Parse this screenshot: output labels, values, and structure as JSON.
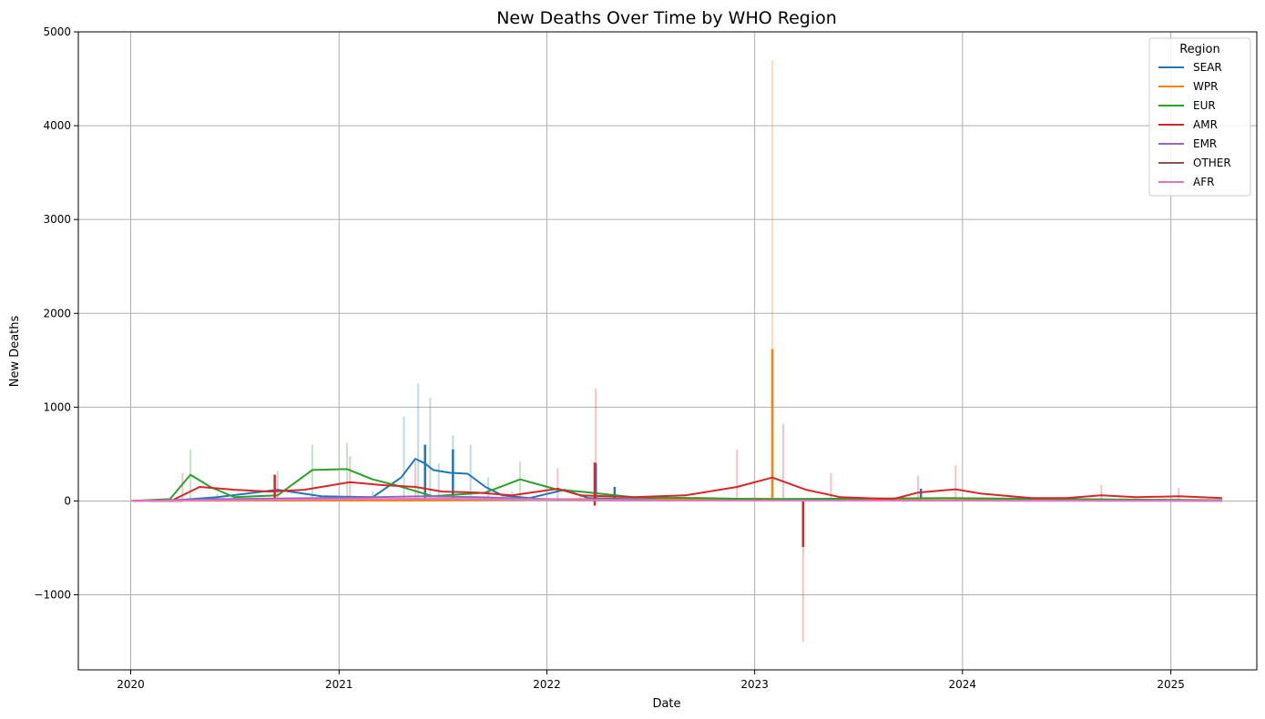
{
  "chart_data": {
    "type": "line",
    "title": "New Deaths Over Time by WHO Region",
    "xlabel": "Date",
    "ylabel": "New Deaths",
    "xlim": [
      "2019-10-01",
      "2025-06-01"
    ],
    "ylim": [
      -1800,
      5000
    ],
    "x_ticks": [
      "2020",
      "2021",
      "2022",
      "2023",
      "2024",
      "2025"
    ],
    "y_ticks": [
      -1000,
      0,
      1000,
      2000,
      3000,
      4000,
      5000
    ],
    "y_tick_labels": [
      "−1000",
      "0",
      "1000",
      "2000",
      "3000",
      "4000",
      "5000"
    ],
    "grid": true,
    "legend": {
      "title": "Region",
      "position": "top-right"
    },
    "series": [
      {
        "name": "SEAR",
        "color": "#1f77b4",
        "points": [
          [
            "2020-01-03",
            0
          ],
          [
            "2020-03-15",
            5
          ],
          [
            "2020-06-01",
            40
          ],
          [
            "2020-09-15",
            120
          ],
          [
            "2020-12-01",
            50
          ],
          [
            "2021-03-01",
            40
          ],
          [
            "2021-04-20",
            250
          ],
          [
            "2021-05-15",
            450
          ],
          [
            "2021-06-01",
            400
          ],
          [
            "2021-06-15",
            330
          ],
          [
            "2021-07-15",
            300
          ],
          [
            "2021-08-15",
            290
          ],
          [
            "2021-09-15",
            150
          ],
          [
            "2021-10-15",
            60
          ],
          [
            "2021-12-01",
            30
          ],
          [
            "2022-02-01",
            120
          ],
          [
            "2022-03-15",
            30
          ],
          [
            "2022-06-01",
            20
          ],
          [
            "2023-01-01",
            10
          ],
          [
            "2024-01-01",
            5
          ],
          [
            "2025-04-01",
            2
          ]
        ],
        "spikes": [
          [
            "2021-06-01",
            600
          ],
          [
            "2021-07-20",
            550
          ],
          [
            "2022-03-28",
            400
          ],
          [
            "2022-04-30",
            150
          ],
          [
            "2023-10-20",
            130
          ]
        ],
        "band": [
          [
            "2020-06-01",
            80
          ],
          [
            "2020-09-15",
            320
          ],
          [
            "2021-03-01",
            100
          ],
          [
            "2021-04-25",
            900
          ],
          [
            "2021-05-20",
            1250
          ],
          [
            "2021-06-10",
            1100
          ],
          [
            "2021-06-25",
            400
          ],
          [
            "2021-07-20",
            700
          ],
          [
            "2021-08-20",
            600
          ],
          [
            "2021-09-20",
            250
          ],
          [
            "2021-11-01",
            100
          ],
          [
            "2022-03-01",
            80
          ]
        ]
      },
      {
        "name": "WPR",
        "color": "#ff7f0e",
        "points": [
          [
            "2020-01-03",
            2
          ],
          [
            "2020-06-01",
            3
          ],
          [
            "2021-06-01",
            5
          ],
          [
            "2022-03-01",
            20
          ],
          [
            "2022-06-01",
            10
          ],
          [
            "2022-10-01",
            20
          ],
          [
            "2023-01-01",
            25
          ],
          [
            "2023-04-01",
            15
          ],
          [
            "2023-10-01",
            10
          ],
          [
            "2025-04-01",
            5
          ]
        ],
        "spikes": [
          [
            "2023-02-01",
            1620
          ]
        ],
        "band": [
          [
            "2023-02-01",
            4700
          ]
        ]
      },
      {
        "name": "EUR",
        "color": "#2ca02c",
        "points": [
          [
            "2020-01-03",
            0
          ],
          [
            "2020-03-10",
            20
          ],
          [
            "2020-04-15",
            280
          ],
          [
            "2020-05-20",
            150
          ],
          [
            "2020-07-01",
            40
          ],
          [
            "2020-09-15",
            60
          ],
          [
            "2020-11-15",
            330
          ],
          [
            "2021-01-15",
            340
          ],
          [
            "2021-03-01",
            230
          ],
          [
            "2021-04-15",
            160
          ],
          [
            "2021-06-15",
            50
          ],
          [
            "2021-09-15",
            90
          ],
          [
            "2021-11-15",
            230
          ],
          [
            "2021-12-15",
            180
          ],
          [
            "2022-01-20",
            120
          ],
          [
            "2022-03-01",
            100
          ],
          [
            "2022-06-01",
            40
          ],
          [
            "2022-10-01",
            30
          ],
          [
            "2023-01-01",
            20
          ],
          [
            "2023-12-01",
            30
          ],
          [
            "2025-04-01",
            8
          ]
        ],
        "spikes": [],
        "band": [
          [
            "2020-04-15",
            550
          ],
          [
            "2020-11-15",
            600
          ],
          [
            "2021-01-15",
            620
          ],
          [
            "2021-11-15",
            420
          ]
        ]
      },
      {
        "name": "AMR",
        "color": "#d62728",
        "points": [
          [
            "2020-01-03",
            0
          ],
          [
            "2020-03-15",
            10
          ],
          [
            "2020-05-01",
            150
          ],
          [
            "2020-07-01",
            120
          ],
          [
            "2020-09-01",
            100
          ],
          [
            "2020-11-01",
            120
          ],
          [
            "2021-01-20",
            200
          ],
          [
            "2021-03-15",
            170
          ],
          [
            "2021-05-15",
            150
          ],
          [
            "2021-07-01",
            100
          ],
          [
            "2021-09-01",
            90
          ],
          [
            "2021-11-01",
            60
          ],
          [
            "2022-01-20",
            130
          ],
          [
            "2022-03-01",
            60
          ],
          [
            "2022-06-01",
            40
          ],
          [
            "2022-09-01",
            60
          ],
          [
            "2022-12-01",
            150
          ],
          [
            "2023-02-01",
            250
          ],
          [
            "2023-04-01",
            120
          ],
          [
            "2023-06-01",
            40
          ],
          [
            "2023-09-01",
            20
          ],
          [
            "2023-10-15",
            90
          ],
          [
            "2023-12-20",
            125
          ],
          [
            "2024-02-01",
            80
          ],
          [
            "2024-05-01",
            30
          ],
          [
            "2024-07-01",
            30
          ],
          [
            "2024-09-01",
            60
          ],
          [
            "2024-11-01",
            40
          ],
          [
            "2025-01-15",
            50
          ],
          [
            "2025-04-01",
            30
          ]
        ],
        "spikes": [
          [
            "2020-09-10",
            280
          ],
          [
            "2022-03-26",
            -50
          ],
          [
            "2022-03-26",
            410
          ],
          [
            "2023-03-27",
            -490
          ]
        ],
        "band": [
          [
            "2020-04-01",
            300
          ],
          [
            "2021-01-20",
            480
          ],
          [
            "2021-05-15",
            420
          ],
          [
            "2022-01-20",
            350
          ],
          [
            "2022-03-28",
            1200
          ],
          [
            "2022-12-01",
            550
          ],
          [
            "2023-02-20",
            820
          ],
          [
            "2023-03-27",
            -1500
          ],
          [
            "2023-05-15",
            300
          ],
          [
            "2023-10-15",
            270
          ],
          [
            "2023-12-20",
            380
          ],
          [
            "2024-09-01",
            170
          ],
          [
            "2025-01-15",
            140
          ]
        ]
      },
      {
        "name": "EMR",
        "color": "#9467bd",
        "points": [
          [
            "2020-01-03",
            0
          ],
          [
            "2020-06-01",
            20
          ],
          [
            "2020-12-01",
            30
          ],
          [
            "2021-06-01",
            50
          ],
          [
            "2021-09-01",
            40
          ],
          [
            "2022-01-01",
            20
          ],
          [
            "2022-06-01",
            5
          ],
          [
            "2025-04-01",
            2
          ]
        ],
        "spikes": [],
        "band": []
      },
      {
        "name": "OTHER",
        "color": "#8c564b",
        "points": [
          [
            "2020-02-01",
            0
          ],
          [
            "2020-04-01",
            0
          ]
        ],
        "spikes": [],
        "band": []
      },
      {
        "name": "AFR",
        "color": "#e377c2",
        "points": [
          [
            "2020-01-03",
            0
          ],
          [
            "2020-08-01",
            10
          ],
          [
            "2021-01-20",
            20
          ],
          [
            "2021-07-01",
            25
          ],
          [
            "2022-01-01",
            15
          ],
          [
            "2022-06-01",
            5
          ],
          [
            "2025-04-01",
            1
          ]
        ],
        "spikes": [],
        "band": []
      }
    ]
  }
}
